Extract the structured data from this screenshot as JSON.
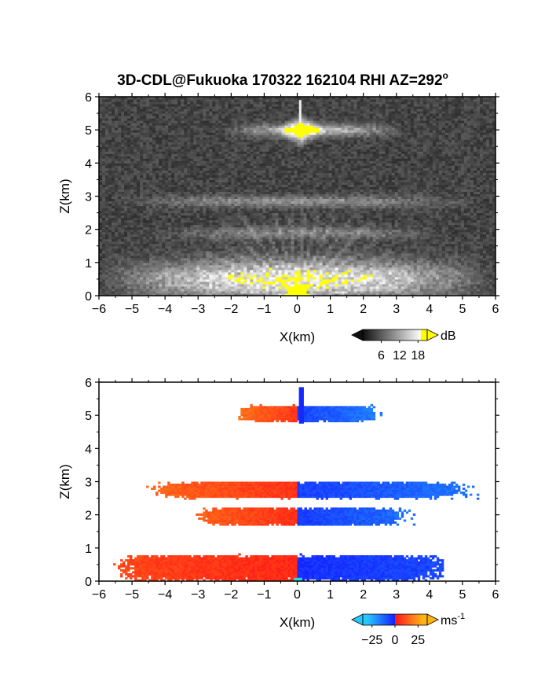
{
  "chart_data": {
    "title": "3D-CDL@Fukuoka 170322 162104 RHI AZ=292",
    "title_superscript": "o",
    "panels": [
      {
        "id": "reflectivity",
        "type": "heatmap",
        "colormap": "grayscale",
        "xlabel": "X(km)",
        "ylabel": "Z(km)",
        "xlim": [
          -6,
          6
        ],
        "ylim": [
          0,
          6
        ],
        "xticks": [
          "-6",
          "-5",
          "-4",
          "-3",
          "-2",
          "-1",
          "0",
          "1",
          "2",
          "3",
          "4",
          "5",
          "6"
        ],
        "yticks": [
          "0",
          "1",
          "2",
          "3",
          "4",
          "5",
          "6"
        ],
        "colorbar": {
          "unit": "dB",
          "ticks": [
            "6",
            "12",
            "18"
          ],
          "range": [
            0,
            21
          ],
          "tick_values": [
            6,
            12,
            18
          ],
          "high_color": "#ffff00"
        },
        "features": [
          {
            "kind": "bright-core",
            "x": 0.1,
            "z": 5.0,
            "dx": 0.35,
            "dz": 0.25,
            "color": "#ffff00"
          },
          {
            "kind": "layer",
            "z": 5.0,
            "x_min": -2.2,
            "x_max": 3.2,
            "intensity": 10
          },
          {
            "kind": "layer",
            "z": 2.85,
            "x_min": -5.5,
            "x_max": 5.5,
            "intensity": 6
          },
          {
            "kind": "layer",
            "z": 1.9,
            "x_min": -4.5,
            "x_max": 4.5,
            "intensity": 5
          },
          {
            "kind": "layer",
            "z": 0.5,
            "x_min": -6.0,
            "x_max": 6.0,
            "intensity": 14
          }
        ]
      },
      {
        "id": "doppler-velocity",
        "type": "heatmap",
        "colormap": "diverging",
        "xlabel": "X(km)",
        "ylabel": "Z(km)",
        "xlim": [
          -6,
          6
        ],
        "ylim": [
          0,
          6
        ],
        "xticks": [
          "-6",
          "-5",
          "-4",
          "-3",
          "-2",
          "-1",
          "0",
          "1",
          "2",
          "3",
          "4",
          "5",
          "6"
        ],
        "yticks": [
          "0",
          "1",
          "2",
          "3",
          "4",
          "5",
          "6"
        ],
        "colorbar": {
          "unit": "ms",
          "unit_superscript": "-1",
          "ticks": [
            "-25",
            "0",
            "25"
          ],
          "range": [
            -35,
            35
          ],
          "tick_values": [
            -25,
            0,
            25
          ]
        },
        "layers": [
          {
            "z_center": 5.05,
            "z_half": 0.28,
            "x_min": -1.9,
            "x_max": 2.7,
            "velocity_left": 18,
            "velocity_right": -18
          },
          {
            "z_center": 2.75,
            "z_half": 0.28,
            "x_min": -4.7,
            "x_max": 5.6,
            "velocity_left": 16,
            "velocity_right": -16
          },
          {
            "z_center": 1.95,
            "z_half": 0.3,
            "x_min": -3.3,
            "x_max": 3.6,
            "velocity_left": 15,
            "velocity_right": -15
          },
          {
            "z_center": 0.4,
            "z_half": 0.42,
            "x_min": -5.6,
            "x_max": 4.6,
            "velocity_left": 10,
            "velocity_right": -8
          }
        ]
      }
    ]
  }
}
